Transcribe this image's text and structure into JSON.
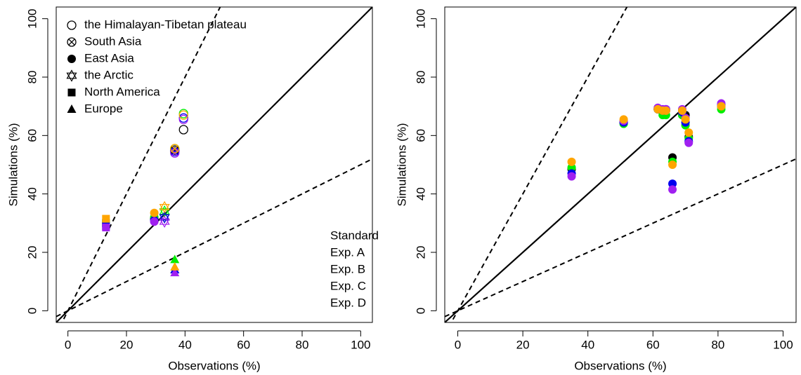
{
  "chart_data": [
    {
      "type": "scatter",
      "xlabel": "Observations (%)",
      "ylabel": "Simulations (%)",
      "x": [
        39.5,
        36.5,
        29.5,
        33,
        13,
        36.5
      ],
      "groups": [
        "the Himalayan-Tibetan plateau",
        "South Asia",
        "East Asia",
        "the Arctic",
        "North America",
        "Europe"
      ],
      "shapes": [
        "circle-open",
        "circle-cross",
        "circle",
        "star-open",
        "square",
        "triangle"
      ],
      "series": [
        {
          "name": "Standard",
          "color": "#000000",
          "values": [
            62,
            55,
            31.5,
            32,
            30,
            14
          ]
        },
        {
          "name": "Exp. A",
          "color": "#00ee00",
          "values": [
            67.5,
            55.5,
            32,
            34,
            30,
            17.5
          ]
        },
        {
          "name": "Exp. B",
          "color": "#0000ee",
          "values": [
            66,
            54.5,
            31,
            32,
            29,
            14
          ]
        },
        {
          "name": "Exp. C",
          "color": "#a020f0",
          "values": [
            65.5,
            54,
            30.5,
            30.5,
            28.5,
            13
          ]
        },
        {
          "name": "Exp. D",
          "color": "#ffa500",
          "values": [
            67,
            55.5,
            33.5,
            35.5,
            31.5,
            15
          ]
        }
      ],
      "xlim": [
        -4,
        104
      ],
      "ylim": [
        -4,
        104
      ],
      "xticks": [
        0,
        20,
        40,
        60,
        80,
        100
      ],
      "yticks": [
        0,
        20,
        40,
        60,
        80,
        100
      ],
      "reference_lines": [
        {
          "slope": 1,
          "style": "solid"
        },
        {
          "slope": 2,
          "style": "dashed"
        },
        {
          "slope": 0.5,
          "style": "dashed"
        }
      ],
      "legend_position": "top-left",
      "series_legend_position": "bottom-right"
    },
    {
      "type": "scatter",
      "xlabel": "Observations (%)",
      "ylabel": "Simulations (%)",
      "x": [
        35,
        51,
        61.5,
        63,
        64,
        66,
        69,
        70,
        71,
        81
      ],
      "shape": "circle",
      "series": [
        {
          "color": "#000000",
          "values": [
            48.5,
            64.5,
            69,
            68,
            68.5,
            52.5,
            67,
            67,
            59.5,
            70
          ]
        },
        {
          "color": "#00ee00",
          "values": [
            49,
            64,
            69,
            67,
            67,
            51,
            67,
            63.5,
            59,
            69
          ]
        },
        {
          "color": "#0000ee",
          "values": [
            47,
            64.5,
            69,
            68.5,
            69,
            43.5,
            68,
            64.5,
            58,
            70.5
          ]
        },
        {
          "color": "#a020f0",
          "values": [
            46,
            65,
            69.5,
            69,
            69,
            41.5,
            69,
            66,
            57.5,
            71
          ]
        },
        {
          "color": "#ffa500",
          "values": [
            51,
            65.5,
            69,
            68.5,
            68.5,
            50,
            68.5,
            65.5,
            61,
            70
          ]
        }
      ],
      "xlim": [
        -4,
        104
      ],
      "ylim": [
        -4,
        104
      ],
      "xticks": [
        0,
        20,
        40,
        60,
        80,
        100
      ],
      "yticks": [
        0,
        20,
        40,
        60,
        80,
        100
      ],
      "reference_lines": [
        {
          "slope": 1,
          "style": "solid"
        },
        {
          "slope": 2,
          "style": "dashed"
        },
        {
          "slope": 0.5,
          "style": "dashed"
        }
      ]
    }
  ]
}
